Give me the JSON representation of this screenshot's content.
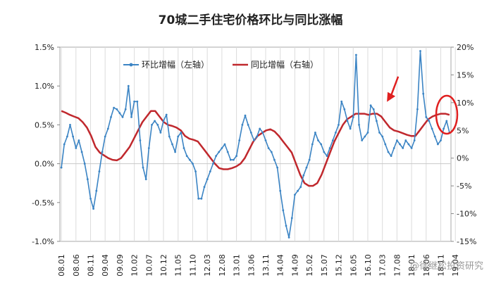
{
  "chart_data": {
    "type": "line",
    "title": "70城二手住宅价格环比与同比涨幅",
    "y_left": {
      "ylim": [
        -1.0,
        1.5
      ],
      "ticks": [
        -1.0,
        -0.5,
        0.0,
        0.5,
        1.0,
        1.5
      ],
      "labels": [
        "-1.0%",
        "-0.5%",
        "0.0%",
        "0.5%",
        "1.0%",
        "1.5%"
      ]
    },
    "y_right": {
      "ylim": [
        -15,
        20
      ],
      "ticks": [
        -15,
        -10,
        -5,
        0,
        5,
        10,
        15,
        20
      ],
      "labels": [
        "-15%",
        "-10%",
        "-5%",
        "0%",
        "5%",
        "10%",
        "15%",
        "20%"
      ]
    },
    "x_tick_labels": [
      "08.01",
      "08.06",
      "08.11",
      "09.04",
      "09.09",
      "10.02",
      "10.07",
      "10.12",
      "11.05",
      "11.10",
      "12.03",
      "12.08",
      "13.01",
      "13.06",
      "13.11",
      "14.04",
      "14.09",
      "15.02",
      "15.07",
      "15.12",
      "16.05",
      "16.10",
      "17.03",
      "17.08",
      "18.01",
      "18.06",
      "18.11",
      "19.04"
    ],
    "grid": "vertical",
    "legend_position": "top-left",
    "series": [
      {
        "name": "环比增幅（左轴）",
        "axis": "left",
        "color": "#3b84c4",
        "values": [
          -0.05,
          0.25,
          0.35,
          0.5,
          0.35,
          0.2,
          0.3,
          0.15,
          0.0,
          -0.2,
          -0.45,
          -0.58,
          -0.35,
          -0.1,
          0.15,
          0.35,
          0.45,
          0.6,
          0.72,
          0.7,
          0.65,
          0.6,
          0.7,
          1.0,
          0.6,
          0.8,
          0.8,
          0.3,
          -0.05,
          -0.2,
          0.2,
          0.5,
          0.55,
          0.5,
          0.4,
          0.55,
          0.63,
          0.35,
          0.25,
          0.15,
          0.35,
          0.4,
          0.2,
          0.1,
          0.05,
          0.0,
          -0.1,
          -0.45,
          -0.45,
          -0.3,
          -0.2,
          -0.1,
          0.0,
          0.1,
          0.15,
          0.2,
          0.25,
          0.15,
          0.05,
          0.05,
          0.1,
          0.3,
          0.5,
          0.62,
          0.5,
          0.4,
          0.3,
          0.35,
          0.45,
          0.4,
          0.3,
          0.2,
          0.15,
          0.05,
          -0.05,
          -0.35,
          -0.6,
          -0.8,
          -0.95,
          -0.7,
          -0.4,
          -0.35,
          -0.3,
          -0.15,
          -0.05,
          0.05,
          0.25,
          0.4,
          0.3,
          0.25,
          0.15,
          0.1,
          0.2,
          0.3,
          0.4,
          0.5,
          0.8,
          0.7,
          0.55,
          0.45,
          0.6,
          1.4,
          0.5,
          0.3,
          0.35,
          0.4,
          0.75,
          0.7,
          0.55,
          0.4,
          0.35,
          0.25,
          0.15,
          0.1,
          0.2,
          0.3,
          0.25,
          0.2,
          0.3,
          0.25,
          0.2,
          0.3,
          0.7,
          1.45,
          0.9,
          0.6,
          0.55,
          0.45,
          0.35,
          0.25,
          0.3,
          0.45,
          0.55,
          0.4
        ],
        "values_note": "monthly, Jan 2008 – Jul 2019"
      },
      {
        "name": "同比增幅（右轴）",
        "axis": "right",
        "color": "#c0282d",
        "values": [
          8.5,
          8.2,
          7.8,
          7.5,
          7.2,
          6.5,
          5.5,
          4.0,
          2.0,
          1.0,
          0.5,
          0.0,
          -0.3,
          -0.4,
          0.0,
          1.0,
          2.0,
          3.5,
          5.0,
          6.5,
          7.5,
          8.5,
          8.5,
          7.5,
          6.5,
          6.0,
          5.8,
          5.5,
          5.0,
          4.0,
          3.5,
          3.3,
          3.0,
          2.0,
          1.0,
          0.0,
          -1.0,
          -1.8,
          -2.0,
          -2.0,
          -1.8,
          -1.5,
          -1.0,
          0.0,
          1.5,
          3.0,
          4.0,
          4.5,
          5.0,
          5.2,
          4.8,
          4.0,
          3.0,
          2.0,
          1.0,
          -1.0,
          -3.0,
          -4.5,
          -5.0,
          -5.0,
          -4.5,
          -3.0,
          -1.0,
          1.0,
          3.0,
          4.5,
          6.0,
          7.0,
          7.5,
          8.0,
          8.0,
          8.0,
          7.8,
          8.0,
          8.0,
          7.5,
          6.5,
          5.5,
          5.0,
          4.8,
          4.5,
          4.2,
          4.0,
          4.0,
          5.0,
          6.0,
          7.0,
          7.5,
          7.8,
          8.0,
          8.0,
          7.8
        ]
      }
    ],
    "annotations": [
      "arrow",
      "ellipse-highlight"
    ]
  },
  "watermark": "@徐继松投资研究"
}
